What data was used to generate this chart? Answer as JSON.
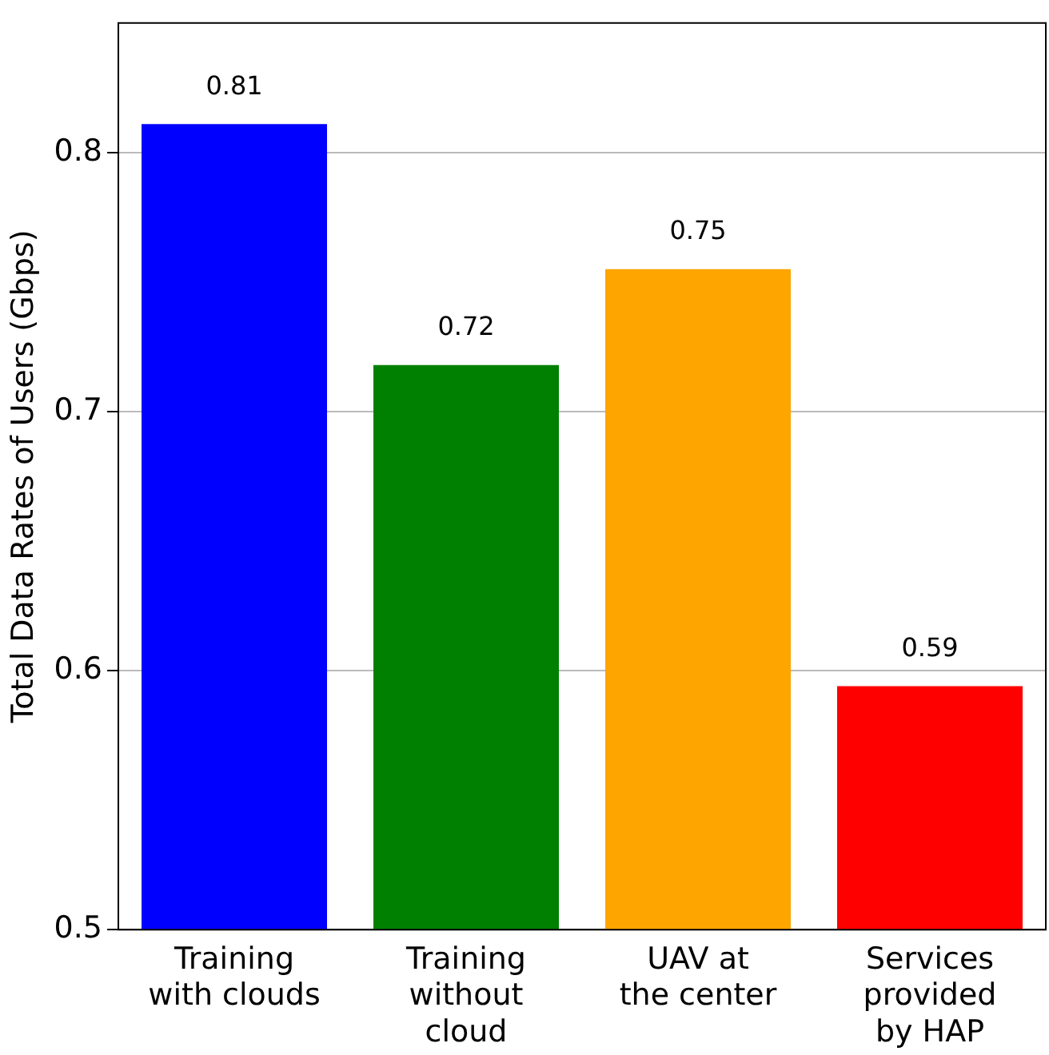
{
  "chart_data": {
    "type": "bar",
    "ylabel": "Total Data Rates of Users (Gbps)",
    "categories": [
      "Training\nwith clouds",
      "Training\nwithout\ncloud",
      "UAV at\nthe center",
      "Services\nprovided\nby HAP"
    ],
    "values": [
      0.811,
      0.718,
      0.755,
      0.594
    ],
    "colors": [
      "#0000ff",
      "#008000",
      "#ffa500",
      "#ff0000"
    ],
    "value_labels": [
      "0.81",
      "0.72",
      "0.75",
      "0.59"
    ],
    "ylim": [
      0.5,
      0.85
    ],
    "yticks": [
      0.5,
      0.6,
      0.7,
      0.8
    ],
    "grid": "y",
    "legend": false
  }
}
